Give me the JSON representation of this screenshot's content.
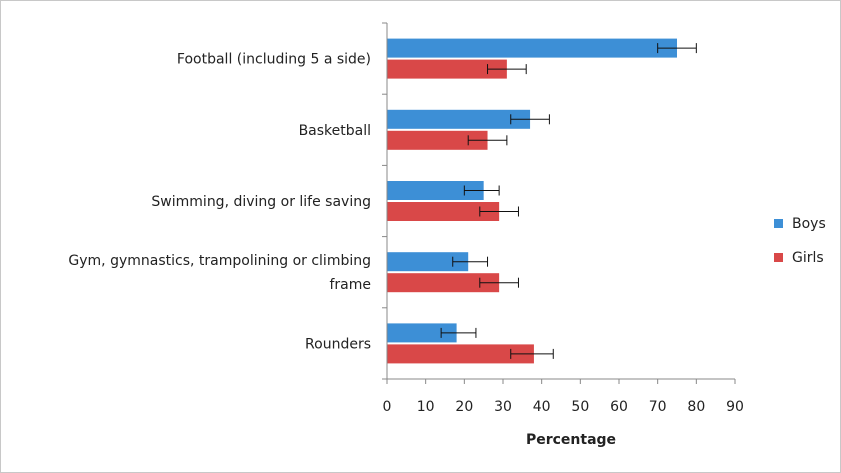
{
  "chart_data": {
    "type": "bar",
    "orientation": "horizontal",
    "categories": [
      [
        "Football (including 5 a side)"
      ],
      [
        "Basketball"
      ],
      [
        "Swimming, diving or life saving"
      ],
      [
        "Gym, gymnastics, trampolining or climbing",
        "frame"
      ],
      [
        "Rounders"
      ]
    ],
    "series": [
      {
        "name": "Boys",
        "color": "#3d8fd6",
        "values": [
          75,
          37,
          25,
          21,
          18
        ],
        "error_low": [
          70,
          32,
          20,
          17,
          14
        ],
        "error_high": [
          80,
          42,
          29,
          26,
          23
        ]
      },
      {
        "name": "Girls",
        "color": "#d94848",
        "values": [
          31,
          26,
          29,
          29,
          38
        ],
        "error_low": [
          26,
          21,
          24,
          24,
          32
        ],
        "error_high": [
          36,
          31,
          34,
          34,
          43
        ]
      }
    ],
    "xlabel": "Percentage",
    "xlim": [
      0,
      90
    ],
    "xticks": [
      0,
      10,
      20,
      30,
      40,
      50,
      60,
      70,
      80,
      90
    ],
    "grid": false,
    "legend_position": "right"
  }
}
